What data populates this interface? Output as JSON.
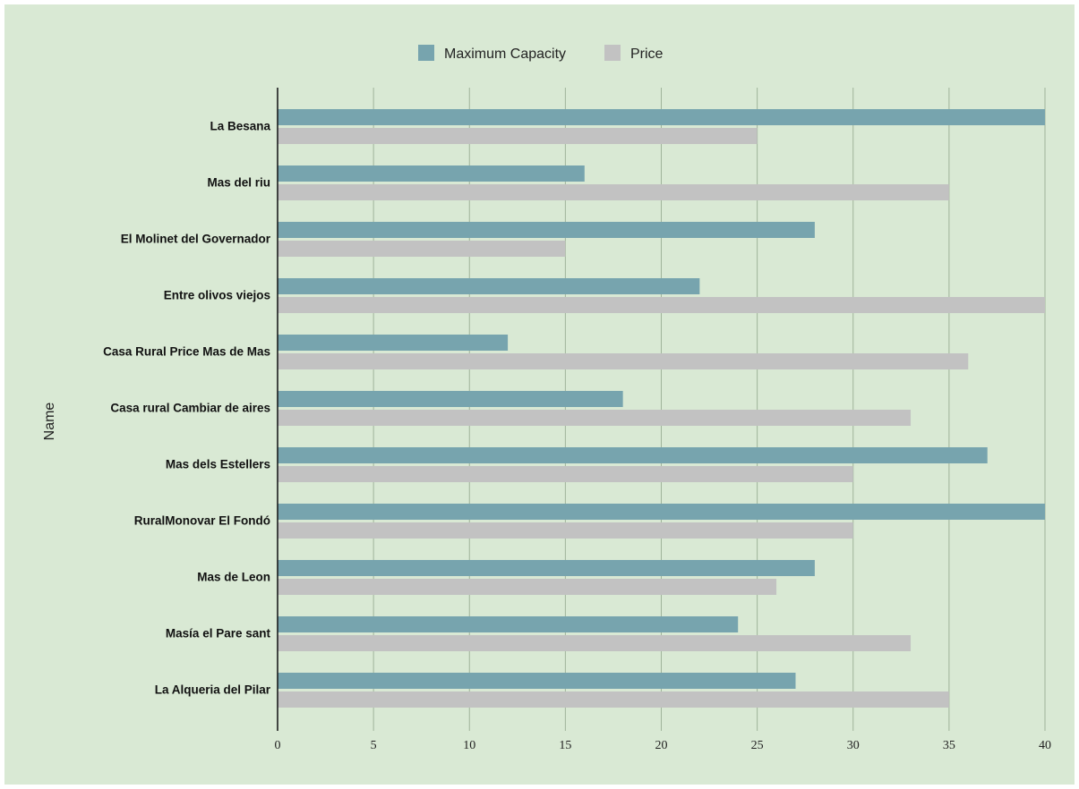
{
  "colors": {
    "background": "#d9e9d4",
    "grid": "#9fb39a",
    "axis": "#111111",
    "series_capacity": "#77a4ae",
    "series_price": "#c2c2c2"
  },
  "chart_data": {
    "type": "bar",
    "orientation": "horizontal",
    "title": "",
    "xlabel": "",
    "ylabel": "Name",
    "xlim": [
      0,
      40
    ],
    "xticks": [
      0,
      5,
      10,
      15,
      20,
      25,
      30,
      35,
      40
    ],
    "grid": true,
    "legend_position": "top",
    "categories": [
      "La Besana",
      "Mas del riu",
      "El Molinet del Governador",
      "Entre olivos viejos",
      "Casa Rural Price Mas de Mas",
      "Casa rural Cambiar de aires",
      "Mas dels Estellers",
      "RuralMonovar El Fondó",
      "Mas de Leon",
      "Masía el Pare sant",
      "La Alqueria del Pilar"
    ],
    "series": [
      {
        "name": "Maximum Capacity",
        "color": "#77a4ae",
        "values": [
          40,
          16,
          28,
          22,
          12,
          18,
          37,
          40,
          28,
          24,
          27
        ]
      },
      {
        "name": "Price",
        "color": "#c2c2c2",
        "values": [
          25,
          35,
          15,
          40,
          36,
          33,
          30,
          30,
          26,
          33,
          35
        ]
      }
    ]
  }
}
